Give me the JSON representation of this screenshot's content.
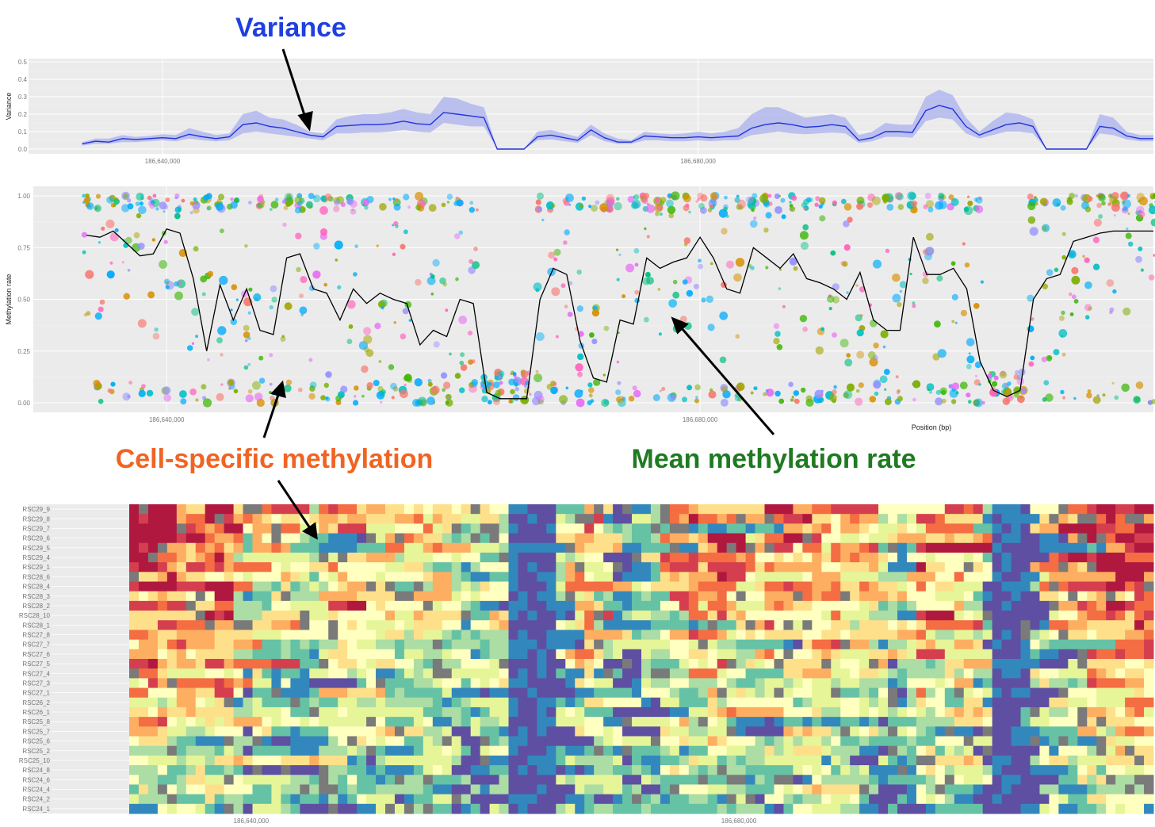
{
  "annotations": {
    "variance": {
      "text": "Variance",
      "color": "#1f3fe0"
    },
    "cell_specific": {
      "text": "Cell-specific methylation",
      "color": "#f06423"
    },
    "mean_rate": {
      "text": "Mean methylation rate",
      "color": "#1f7a22"
    }
  },
  "chart_data": [
    {
      "type": "area",
      "ylabel": "Variance",
      "ylim": [
        0,
        0.5
      ],
      "yticks": [
        "0.0",
        "0.1",
        "0.2",
        "0.3",
        "0.4",
        "0.5"
      ],
      "xlim": [
        186630000,
        186714000
      ],
      "xticks": [
        186640000,
        186680000
      ],
      "xtick_labels": [
        "186,640,000",
        "186,680,000"
      ],
      "grid": true,
      "colors": {
        "line": "#2233dd",
        "band": "#aab0ee"
      },
      "series": [
        {
          "x": [
            186634000,
            186635000,
            186636000,
            186637000,
            186638000,
            186639000,
            186640000,
            186641000,
            186642000,
            186643000,
            186644000,
            186645000,
            186646000,
            186647000,
            186648000,
            186649000,
            186650000,
            186651000,
            186652000,
            186653000,
            186654000,
            186655000,
            186656000,
            186657000,
            186658000,
            186659000,
            186660000,
            186661000,
            186662000,
            186663000,
            186664000,
            186665000,
            186666000,
            186667000,
            186668000,
            186669000,
            186670000,
            186671000,
            186672000,
            186673000,
            186674000,
            186675000,
            186676000,
            186677000,
            186678000,
            186679000,
            186680000,
            186681000,
            186682000,
            186683000,
            186684000,
            186685000,
            186686000,
            186687000,
            186688000,
            186689000,
            186690000,
            186691000,
            186692000,
            186693000,
            186694000,
            186695000,
            186696000,
            186697000,
            186698000,
            186699000,
            186700000,
            186701000,
            186702000,
            186703000,
            186704000,
            186705000,
            186706000,
            186707000,
            186708000,
            186709000,
            186710000,
            186711000,
            186712000,
            186713000,
            186714000
          ],
          "mean": [
            0.03,
            0.045,
            0.04,
            0.06,
            0.055,
            0.06,
            0.065,
            0.06,
            0.085,
            0.07,
            0.06,
            0.07,
            0.14,
            0.15,
            0.13,
            0.12,
            0.1,
            0.08,
            0.07,
            0.13,
            0.135,
            0.14,
            0.14,
            0.145,
            0.16,
            0.145,
            0.14,
            0.21,
            0.2,
            0.19,
            0.18,
            0.0,
            0.0,
            0.0,
            0.07,
            0.08,
            0.065,
            0.05,
            0.11,
            0.065,
            0.04,
            0.04,
            0.075,
            0.07,
            0.065,
            0.065,
            0.07,
            0.065,
            0.07,
            0.075,
            0.12,
            0.14,
            0.15,
            0.14,
            0.125,
            0.13,
            0.14,
            0.13,
            0.05,
            0.065,
            0.1,
            0.1,
            0.095,
            0.22,
            0.25,
            0.23,
            0.13,
            0.08,
            0.11,
            0.14,
            0.15,
            0.13,
            0.0,
            0.0,
            0.0,
            0.0,
            0.13,
            0.12,
            0.075,
            0.06,
            0.06
          ],
          "upper": [
            0.04,
            0.06,
            0.06,
            0.08,
            0.07,
            0.075,
            0.085,
            0.08,
            0.12,
            0.1,
            0.08,
            0.09,
            0.2,
            0.22,
            0.18,
            0.17,
            0.14,
            0.1,
            0.09,
            0.17,
            0.19,
            0.2,
            0.2,
            0.21,
            0.23,
            0.21,
            0.2,
            0.3,
            0.29,
            0.26,
            0.24,
            0.0,
            0.0,
            0.0,
            0.1,
            0.11,
            0.09,
            0.07,
            0.14,
            0.09,
            0.06,
            0.05,
            0.1,
            0.09,
            0.085,
            0.09,
            0.1,
            0.09,
            0.1,
            0.12,
            0.2,
            0.24,
            0.24,
            0.21,
            0.18,
            0.19,
            0.2,
            0.18,
            0.08,
            0.1,
            0.15,
            0.14,
            0.14,
            0.3,
            0.34,
            0.31,
            0.18,
            0.1,
            0.16,
            0.21,
            0.2,
            0.17,
            0.0,
            0.0,
            0.0,
            0.0,
            0.2,
            0.18,
            0.1,
            0.08,
            0.08
          ],
          "lower": [
            0.02,
            0.03,
            0.03,
            0.04,
            0.04,
            0.045,
            0.05,
            0.045,
            0.06,
            0.05,
            0.045,
            0.05,
            0.09,
            0.1,
            0.09,
            0.08,
            0.07,
            0.06,
            0.05,
            0.09,
            0.09,
            0.095,
            0.095,
            0.1,
            0.11,
            0.1,
            0.095,
            0.15,
            0.14,
            0.13,
            0.13,
            0.0,
            0.0,
            0.0,
            0.05,
            0.055,
            0.045,
            0.035,
            0.08,
            0.045,
            0.03,
            0.03,
            0.05,
            0.05,
            0.045,
            0.045,
            0.05,
            0.045,
            0.05,
            0.05,
            0.08,
            0.09,
            0.1,
            0.09,
            0.085,
            0.09,
            0.095,
            0.09,
            0.035,
            0.045,
            0.07,
            0.07,
            0.065,
            0.16,
            0.18,
            0.17,
            0.09,
            0.06,
            0.08,
            0.1,
            0.1,
            0.09,
            0.0,
            0.0,
            0.0,
            0.0,
            0.09,
            0.08,
            0.055,
            0.045,
            0.045
          ]
        }
      ]
    },
    {
      "type": "scatter",
      "ylabel": "Methylation rate",
      "xlabel": "Position (bp)",
      "ylim": [
        0,
        1
      ],
      "yticks": [
        "0.00",
        "0.25",
        "0.50",
        "0.75",
        "1.00"
      ],
      "xlim": [
        186630000,
        186714000
      ],
      "xticks": [
        186640000,
        186680000
      ],
      "xtick_labels": [
        "186,640,000",
        "186,680,000"
      ],
      "grid": true,
      "mean_line": {
        "x": [
          186634000,
          186635000,
          186636000,
          186637000,
          186638000,
          186639000,
          186640000,
          186641000,
          186642000,
          186643000,
          186644000,
          186645000,
          186646000,
          186647000,
          186648000,
          186649000,
          186650000,
          186651000,
          186652000,
          186653000,
          186654000,
          186655000,
          186656000,
          186657000,
          186658000,
          186659000,
          186660000,
          186661000,
          186662000,
          186663000,
          186664000,
          186665000,
          186666000,
          186667000,
          186668000,
          186669000,
          186670000,
          186671000,
          186672000,
          186673000,
          186674000,
          186675000,
          186676000,
          186677000,
          186678000,
          186679000,
          186680000,
          186681000,
          186682000,
          186683000,
          186684000,
          186685000,
          186686000,
          186687000,
          186688000,
          186689000,
          186690000,
          186691000,
          186692000,
          186693000,
          186694000,
          186695000,
          186696000,
          186697000,
          186698000,
          186699000,
          186700000,
          186701000,
          186702000,
          186703000,
          186704000,
          186705000,
          186706000,
          186707000,
          186708000,
          186709000,
          186710000,
          186711000,
          186712000,
          186713000,
          186714000
        ],
        "y": [
          0.81,
          0.8,
          0.83,
          0.77,
          0.71,
          0.72,
          0.84,
          0.82,
          0.6,
          0.25,
          0.57,
          0.4,
          0.55,
          0.35,
          0.33,
          0.7,
          0.72,
          0.55,
          0.53,
          0.4,
          0.55,
          0.48,
          0.53,
          0.5,
          0.48,
          0.28,
          0.35,
          0.32,
          0.5,
          0.48,
          0.05,
          0.02,
          0.02,
          0.02,
          0.5,
          0.65,
          0.62,
          0.3,
          0.12,
          0.1,
          0.4,
          0.38,
          0.7,
          0.65,
          0.68,
          0.7,
          0.8,
          0.7,
          0.55,
          0.53,
          0.75,
          0.7,
          0.65,
          0.72,
          0.6,
          0.58,
          0.55,
          0.5,
          0.63,
          0.4,
          0.35,
          0.35,
          0.8,
          0.62,
          0.62,
          0.65,
          0.55,
          0.2,
          0.06,
          0.03,
          0.06,
          0.5,
          0.6,
          0.62,
          0.78,
          0.8,
          0.82,
          0.83,
          0.83,
          0.83,
          0.83
        ]
      },
      "point_colors": [
        "#f8766d",
        "#e76bf3",
        "#00bfc4",
        "#00b0f6",
        "#9590ff",
        "#a3a500",
        "#39b600",
        "#00bf7d",
        "#d89000",
        "#ff62bc",
        "#00a9ff",
        "#7cae00"
      ]
    },
    {
      "type": "heatmap",
      "ylabels": [
        "RSC24_1",
        "RSC24_2",
        "RSC24_4",
        "RSC24_6",
        "RSC24_8",
        "RSC25_10",
        "RSC25_2",
        "RSC25_6",
        "RSC25_7",
        "RSC25_8",
        "RSC26_1",
        "RSC26_2",
        "RSC27_1",
        "RSC27_3",
        "RSC27_4",
        "RSC27_5",
        "RSC27_6",
        "RSC27_7",
        "RSC27_8",
        "RSC28_1",
        "RSC28_10",
        "RSC28_2",
        "RSC28_3",
        "RSC28_4",
        "RSC28_6",
        "RSC29_1",
        "RSC29_4",
        "RSC29_5",
        "RSC29_6",
        "RSC29_7",
        "RSC29_8",
        "RSC29_9"
      ],
      "xlim": [
        186630000,
        186714000
      ],
      "xticks": [
        186640000,
        186680000
      ],
      "xtick_labels": [
        "186,640,000",
        "186,680,000"
      ],
      "palette": [
        "#5e4fa2",
        "#3288bd",
        "#66c2a5",
        "#abdda4",
        "#e6f598",
        "#ffffbf",
        "#fee08b",
        "#fdae61",
        "#f46d43",
        "#d53e4f",
        "#b1183f"
      ],
      "missing_color": "#7a7a7a"
    }
  ]
}
